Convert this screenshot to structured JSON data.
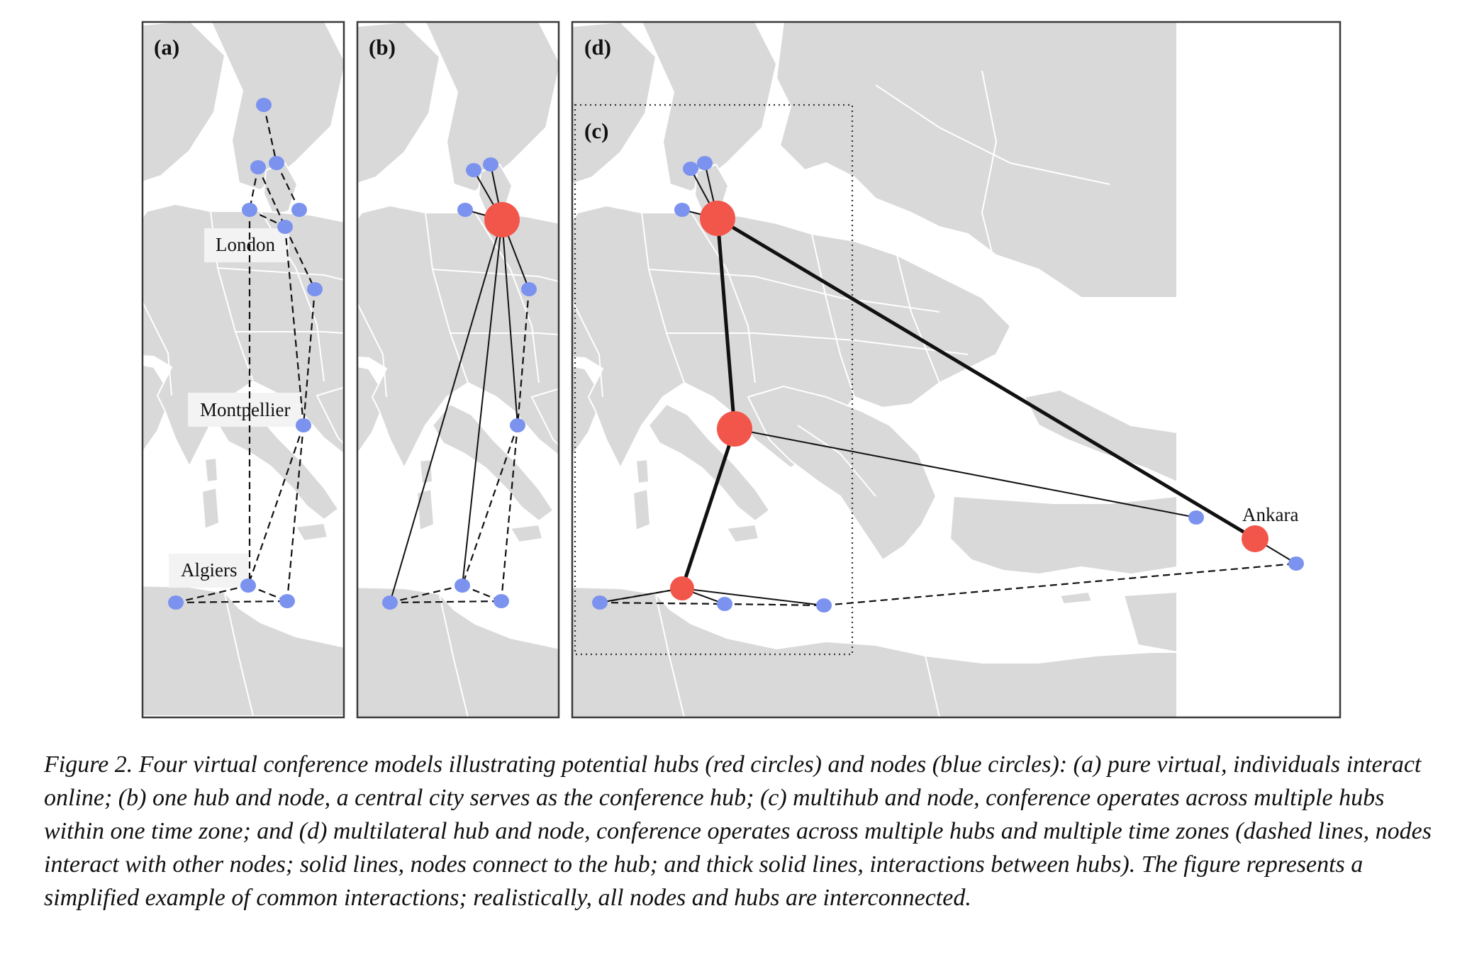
{
  "panels": {
    "a": {
      "label": "(a)",
      "cities": {
        "london": "London",
        "montpellier": "Montpellier",
        "algiers": "Algiers"
      }
    },
    "b": {
      "label": "(b)"
    },
    "c": {
      "label": "(c)"
    },
    "d": {
      "label": "(d)",
      "cities": {
        "ankara": "Ankara"
      }
    }
  },
  "colors": {
    "node": "#7b93ee",
    "hub": "#f2554a",
    "land": "#d9d9d9"
  },
  "caption": "Figure 2.  Four virtual conference models illustrating potential hubs (red circles) and nodes (blue circles): (a) pure virtual, individuals interact online; (b) one hub and node, a central city serves as the conference hub; (c) multihub and node, conference operates across multiple hubs within one time zone; and (d) multilateral hub and node, conference operates across multiple hubs and multiple time zones (dashed lines, nodes interact with other nodes; solid lines, nodes connect to the hub; and thick solid lines, interactions between hubs). The figure represents a simplified example of common interactions; realistically, all nodes and hubs are interconnected."
}
